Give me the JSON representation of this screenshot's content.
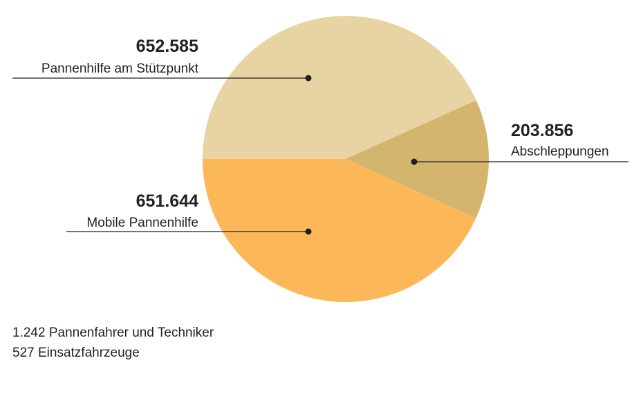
{
  "chart_data": {
    "type": "pie",
    "slices": [
      {
        "label": "Pannenhilfe am Stützpunkt",
        "value": 652585,
        "value_label": "652.585",
        "color": "#e8d4a2"
      },
      {
        "label": "Abschleppungen",
        "value": 203856,
        "value_label": "203.856",
        "color": "#d4b56e"
      },
      {
        "label": "Mobile Pannenhilfe",
        "value": 651644,
        "value_label": "651.644",
        "color": "#fcb758"
      }
    ]
  },
  "footnotes": {
    "line1": "1.242 Pannenfahrer und Techniker",
    "line2": "527 Einsatzfahrzeuge"
  },
  "colors": {
    "leader_line": "#1f1f1f",
    "text": "#222222"
  }
}
